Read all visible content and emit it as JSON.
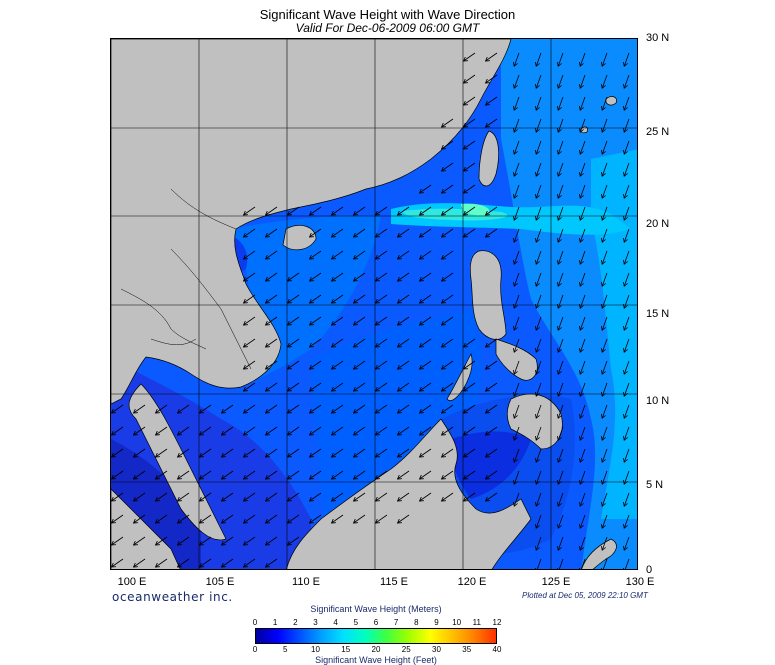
{
  "title": "Significant Wave Height with Wave Direction",
  "subtitle": "Valid For Dec-06-2009 06:00 GMT",
  "credit": "oceanweather inc.",
  "plotted": "Plotted at Dec 05, 2009 22:10 GMT",
  "map": {
    "region": "South China Sea",
    "lon_range": [
      100,
      130
    ],
    "lat_range": [
      0,
      30
    ],
    "lat_labels": [
      "30 N",
      "25 N",
      "20 N",
      "15 N",
      "10 N",
      "5 N",
      "0"
    ],
    "lon_labels": [
      "100 E",
      "105 E",
      "110 E",
      "115 E",
      "120 E",
      "125 E",
      "130 E"
    ],
    "land_color": "#c0c0c0",
    "arrow_direction_label": "southwest"
  },
  "legend": {
    "meters_title": "Significant Wave Height (Meters)",
    "feet_title": "Significant Wave Height (Feet)",
    "meters_ticks": [
      "0",
      "1",
      "2",
      "3",
      "4",
      "5",
      "6",
      "7",
      "8",
      "9",
      "10",
      "11",
      "12"
    ],
    "feet_ticks": [
      "0",
      "5",
      "10",
      "15",
      "20",
      "25",
      "30",
      "35",
      "40"
    ],
    "colors": [
      "#0000a0",
      "#0000ff",
      "#0050ff",
      "#00a0ff",
      "#00e0ff",
      "#00ffc0",
      "#40ff40",
      "#a0ff00",
      "#ffff00",
      "#ffc000",
      "#ff8000",
      "#ff3000"
    ]
  }
}
